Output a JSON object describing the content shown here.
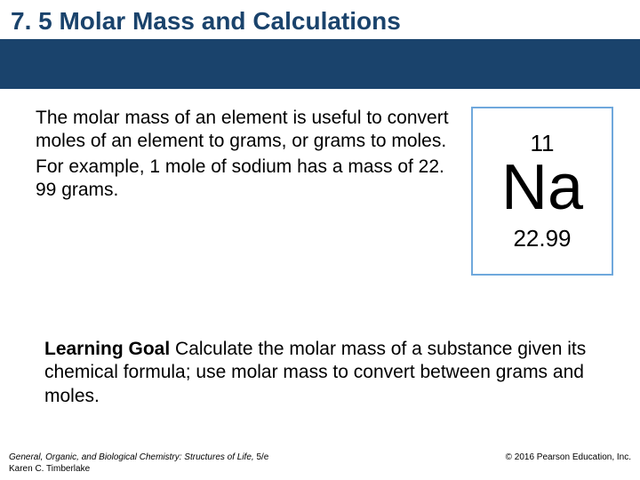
{
  "title": "7. 5  Molar Mass and Calculations",
  "colors": {
    "title_color": "#1a436c",
    "banner_bg": "#1a436c",
    "tile_border": "#6fa8dc",
    "background": "#ffffff"
  },
  "body": {
    "paragraph1": "The molar mass of an element is useful to convert moles of an element to grams, or grams to moles.",
    "paragraph2": "For example, 1 mole of sodium has a mass of 22. 99 grams."
  },
  "element_tile": {
    "atomic_number": "11",
    "symbol": "Na",
    "atomic_mass": "22.99"
  },
  "learning_goal": {
    "label": "Learning Goal",
    "text": "  Calculate the molar mass of a substance given its chemical formula; use molar mass to convert between grams and moles."
  },
  "footer": {
    "book_title": "General, Organic, and Biological Chemistry: Structures of Life, ",
    "edition": "5/e",
    "author": "Karen C. Timberlake",
    "copyright": "© 2016 Pearson Education, Inc."
  },
  "typography": {
    "title_fontsize": 28,
    "body_fontsize": 21,
    "footer_fontsize": 10,
    "atomic_number_fontsize": 26,
    "symbol_fontsize": 72,
    "mass_fontsize": 26
  }
}
